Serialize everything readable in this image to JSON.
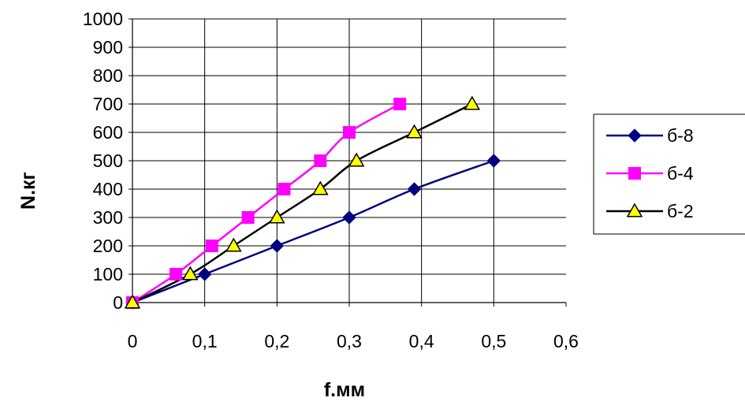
{
  "chart_data": {
    "type": "line",
    "title": "",
    "xlabel": "f.мм",
    "ylabel": "N.кг",
    "xlim": [
      0,
      0.6
    ],
    "ylim": [
      0,
      1000
    ],
    "x_ticks": [
      "0",
      "0,1",
      "0,2",
      "0,3",
      "0,4",
      "0,5",
      "0,6"
    ],
    "y_ticks": [
      "0",
      "100",
      "200",
      "300",
      "400",
      "500",
      "600",
      "700",
      "800",
      "900",
      "1000"
    ],
    "grid": true,
    "smooth": true,
    "legend_position": "right",
    "series": [
      {
        "name": "б-8",
        "color": "#000080",
        "marker": "diamond",
        "x": [
          0,
          0.1,
          0.2,
          0.3,
          0.39,
          0.5
        ],
        "y": [
          0,
          100,
          200,
          300,
          400,
          500
        ]
      },
      {
        "name": "б-4",
        "color": "#ff00ff",
        "marker": "square",
        "x": [
          0,
          0.06,
          0.11,
          0.16,
          0.21,
          0.26,
          0.3,
          0.37
        ],
        "y": [
          0,
          100,
          200,
          300,
          400,
          500,
          600,
          700
        ]
      },
      {
        "name": "б-2",
        "color": "#000000",
        "marker": "triangle",
        "marker_fill": "#ffff00",
        "x": [
          0,
          0.08,
          0.14,
          0.2,
          0.26,
          0.31,
          0.39,
          0.47
        ],
        "y": [
          0,
          100,
          200,
          300,
          400,
          500,
          600,
          700
        ]
      }
    ]
  }
}
